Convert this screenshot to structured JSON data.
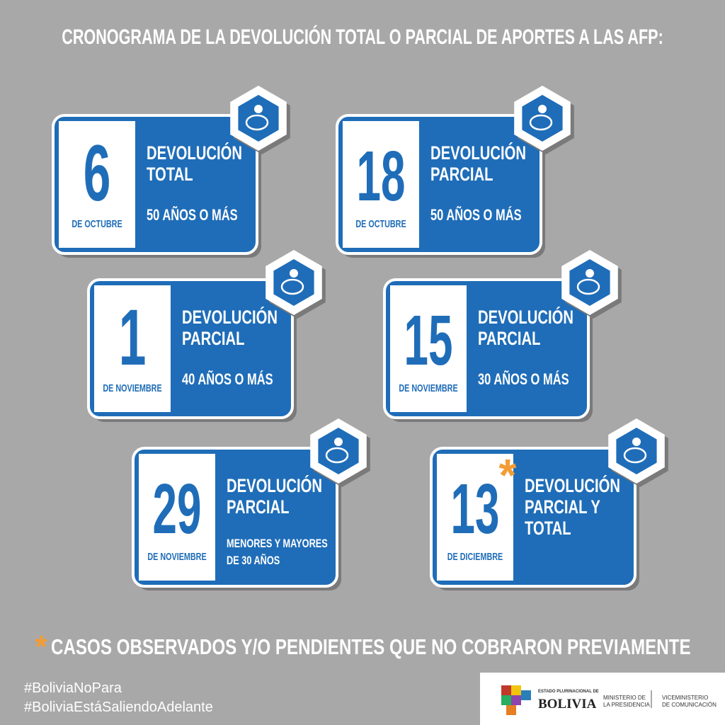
{
  "title": "CRONOGRAMA DE LA DEVOLUCIÓN TOTAL O PARCIAL DE APORTES A LAS AFP:",
  "cards": [
    {
      "day": "6",
      "month": "DE OCTUBRE",
      "heading": [
        "DEVOLUCIÓN",
        "TOTAL"
      ],
      "detail": [
        "50 AÑOS O MÁS"
      ]
    },
    {
      "day": "18",
      "month": "DE OCTUBRE",
      "heading": [
        "DEVOLUCIÓN",
        "PARCIAL"
      ],
      "detail": [
        "50 AÑOS O MÁS"
      ]
    },
    {
      "day": "1",
      "month": "DE NOVIEMBRE",
      "heading": [
        "DEVOLUCIÓN",
        "PARCIAL"
      ],
      "detail": [
        "40 AÑOS O MÁS"
      ]
    },
    {
      "day": "15",
      "month": "DE NOVIEMBRE",
      "heading": [
        "DEVOLUCIÓN",
        "PARCIAL"
      ],
      "detail": [
        "30 AÑOS O MÁS"
      ]
    },
    {
      "day": "29",
      "month": "DE NOVIEMBRE",
      "heading": [
        "DEVOLUCIÓN",
        "PARCIAL"
      ],
      "detail": [
        "MENORES Y MAYORES",
        "DE 30 AÑOS"
      ]
    },
    {
      "day": "13",
      "month": "DE DICIEMBRE",
      "heading": [
        "DEVOLUCIÓN",
        "PARCIAL Y",
        "TOTAL"
      ],
      "asterisk": "*"
    }
  ],
  "footnote": {
    "asterisk": "*",
    "text": "CASOS OBSERVADOS Y/O PENDIENTES QUE NO COBRARON PREVIAMENTE"
  },
  "hashtags": [
    "#BoliviaNoPara",
    "#BoliviaEstáSaliendoAdelante"
  ],
  "logo": {
    "state": "ESTADO PLURINACIONAL DE",
    "country": "BOLIVIA",
    "ministry": [
      "MINISTERIO DE",
      "LA PRESIDENCIA"
    ],
    "viceministry": [
      "VICEMINISTERIO",
      "DE COMUNICACIÓN"
    ]
  }
}
